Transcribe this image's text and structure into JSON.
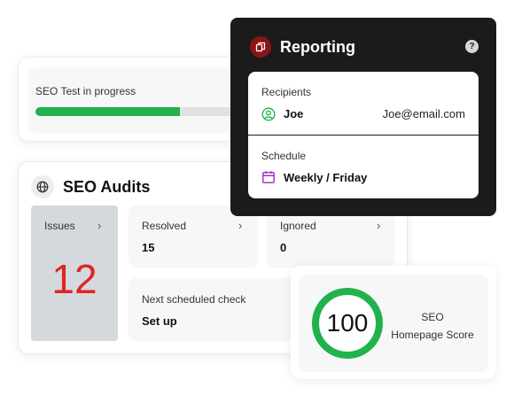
{
  "progress": {
    "label": "SEO Test in progress",
    "fraction": 0.71
  },
  "audits": {
    "title": "SEO Audits",
    "issues": {
      "label": "Issues",
      "value": "12"
    },
    "resolved": {
      "label": "Resolved",
      "value": "15"
    },
    "ignored": {
      "label": "Ignored",
      "value": "0"
    },
    "next_check": {
      "label": "Next scheduled check",
      "value": "Set up"
    }
  },
  "reporting": {
    "title": "Reporting",
    "help": "?",
    "recipients_label": "Recipients",
    "recipient_name": "Joe",
    "recipient_email": "Joe@email.com",
    "schedule_label": "Schedule",
    "schedule_value": "Weekly / Friday"
  },
  "score": {
    "value": "100",
    "line1": "SEO",
    "line2": "Homepage Score",
    "fraction": 1.0
  },
  "colors": {
    "accent_green": "#21b24c",
    "issues_red": "#e02424",
    "brand_red": "#8b1414",
    "schedule_purple": "#9b2bb8"
  },
  "icons": [
    "globe-icon",
    "copy-icon",
    "help-icon",
    "user-circle-icon",
    "calendar-icon",
    "chevron-right-icon"
  ]
}
